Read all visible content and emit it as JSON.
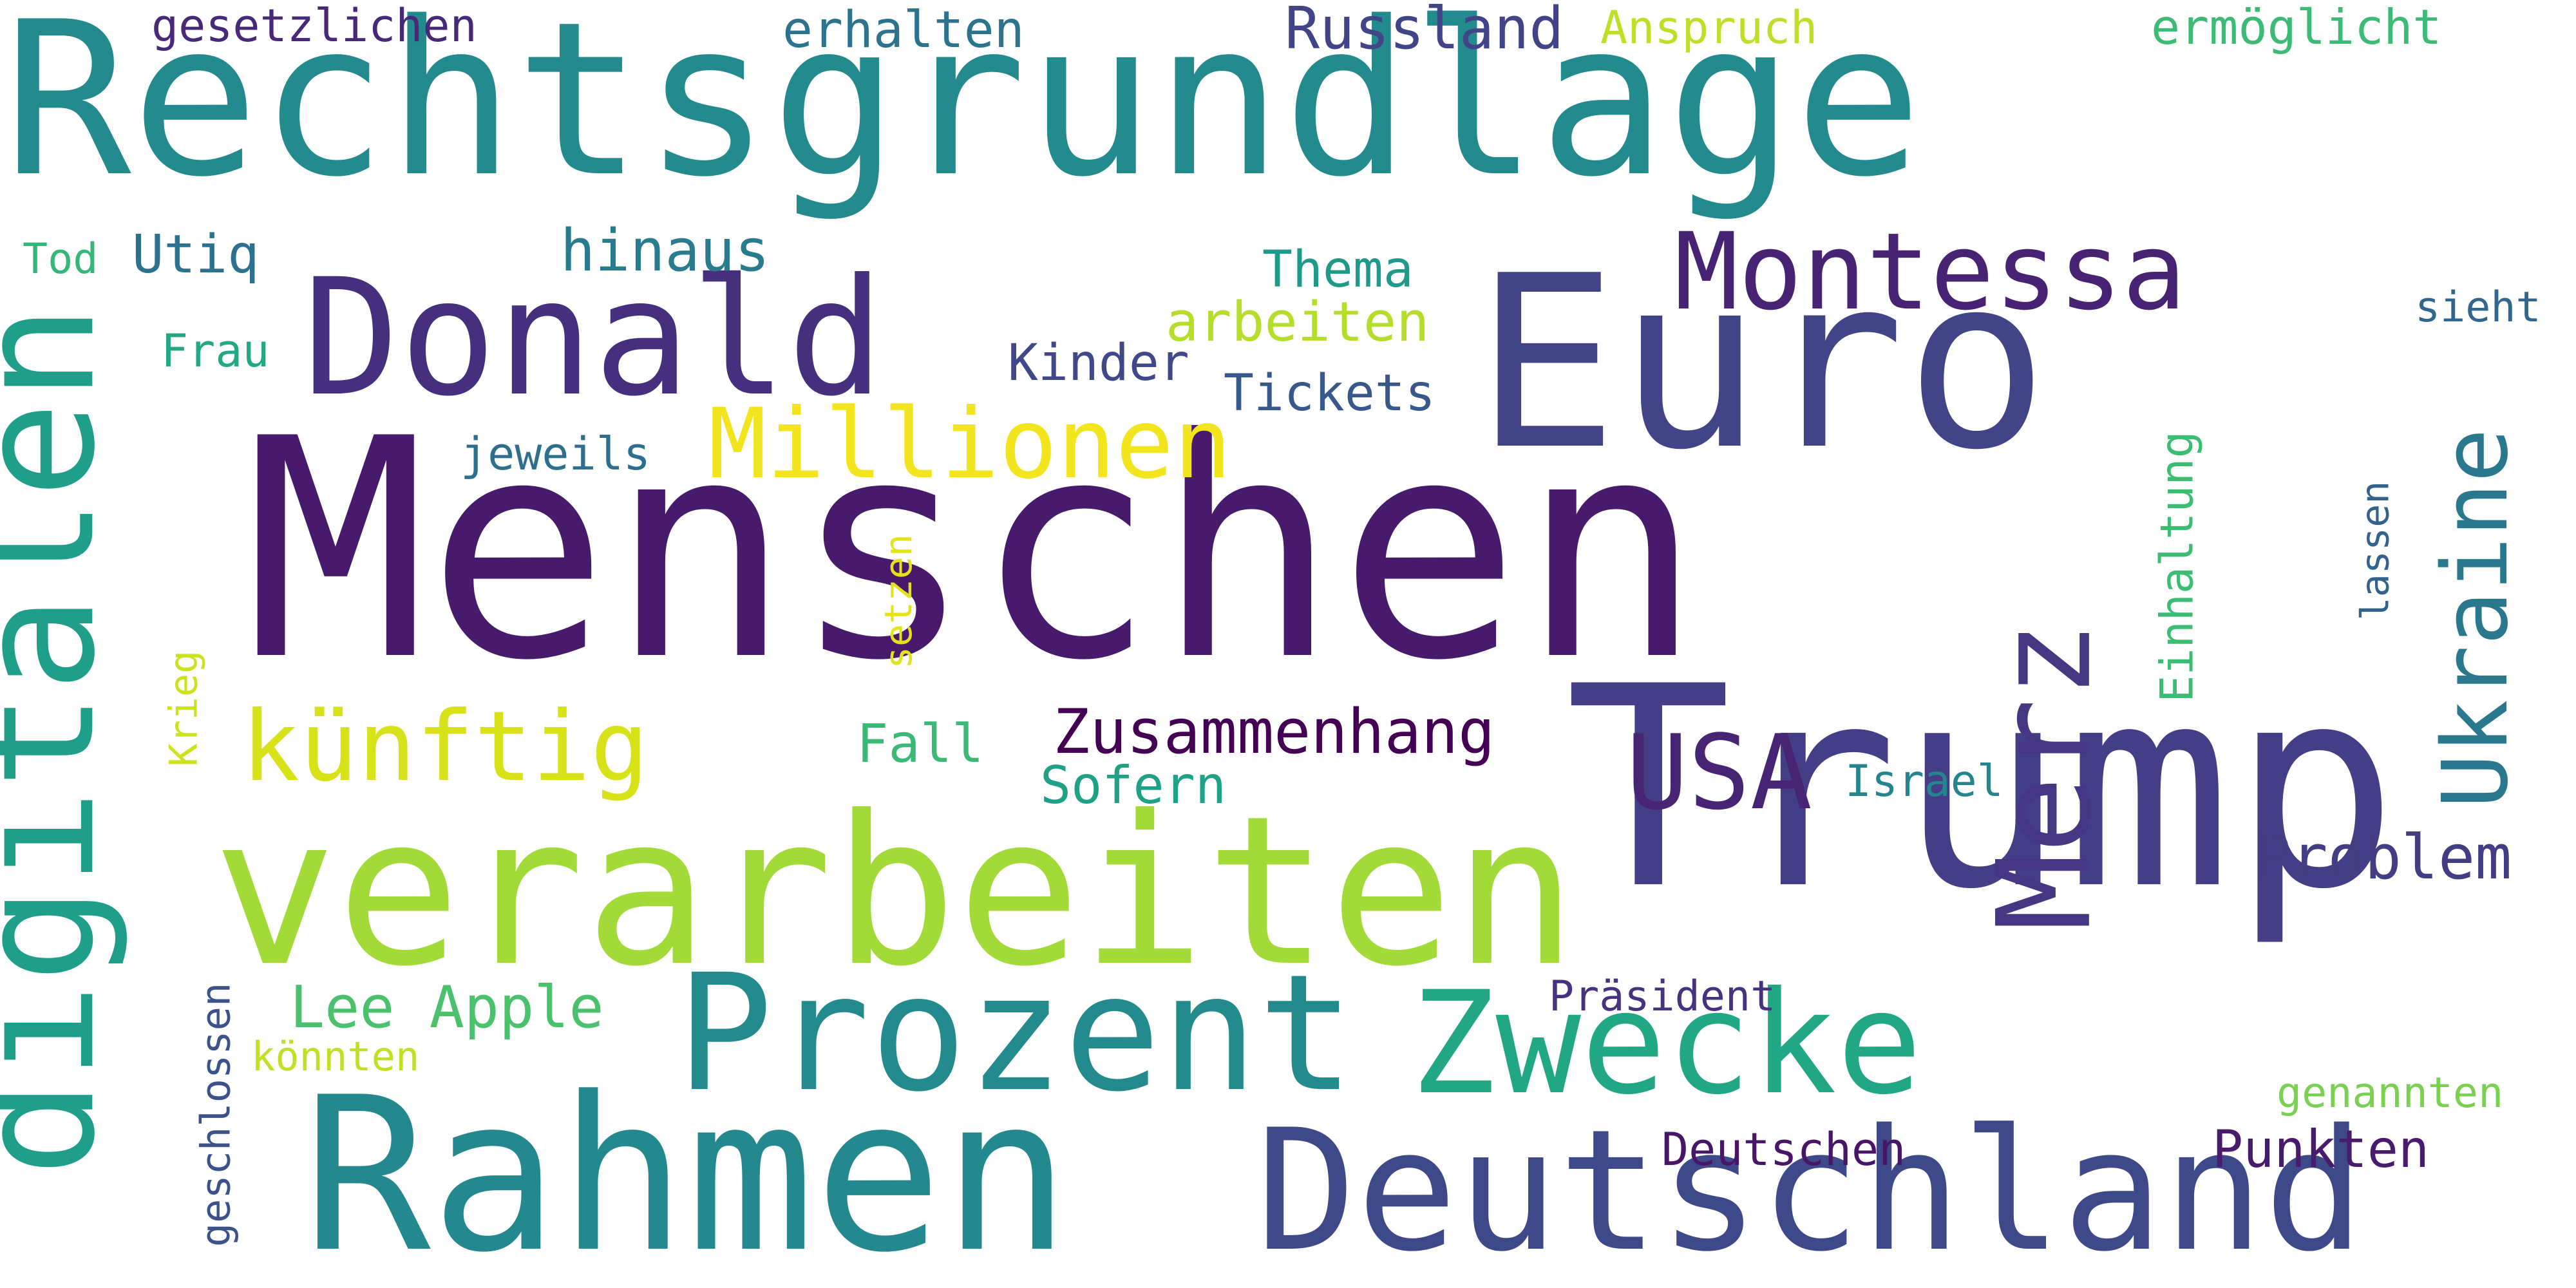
{
  "words": {
    "rechtsgrundlage": {
      "text": "Rechtsgrundlage",
      "color": "#238a8d"
    },
    "menschen": {
      "text": "Menschen",
      "color": "#481a6c"
    },
    "verarbeiten": {
      "text": "verarbeiten",
      "color": "#a2da37"
    },
    "rahmen": {
      "text": "Rahmen",
      "color": "#23898e"
    },
    "euro": {
      "text": "Euro",
      "color": "#414487"
    },
    "trump": {
      "text": "Trump",
      "color": "#433e85"
    },
    "digitalen": {
      "text": "digitalen",
      "color": "#1f9e89"
    },
    "donald": {
      "text": "Donald",
      "color": "#46307e"
    },
    "deutschland": {
      "text": "Deutschland",
      "color": "#3e4989"
    },
    "prozent": {
      "text": "Prozent",
      "color": "#238a8d"
    },
    "zwecke": {
      "text": "Zwecke",
      "color": "#22a785"
    },
    "montessa": {
      "text": "Montessa",
      "color": "#482374"
    },
    "merz": {
      "text": "Merz",
      "color": "#453781"
    },
    "millionen": {
      "text": "Millionen",
      "color": "#f2e51d"
    },
    "kuenftig": {
      "text": "künftig",
      "color": "#d8e219"
    },
    "usa": {
      "text": "USA",
      "color": "#482475"
    },
    "ukraine": {
      "text": "Ukraine",
      "color": "#2a788e"
    },
    "zusammenhang": {
      "text": "Zusammenhang",
      "color": "#440154"
    },
    "problem": {
      "text": "Problem",
      "color": "#433d84"
    },
    "lee_apple": {
      "text": "Lee Apple",
      "color": "#4ac16d"
    },
    "russland": {
      "text": "Russland",
      "color": "#414487"
    },
    "hinaus": {
      "text": "hinaus",
      "color": "#287c8e"
    },
    "thema": {
      "text": "Thema",
      "color": "#1f9a8a"
    },
    "arbeiten": {
      "text": "arbeiten",
      "color": "#b5de2b"
    },
    "kinder": {
      "text": "Kinder",
      "color": "#3f4889"
    },
    "tickets": {
      "text": "Tickets",
      "color": "#38588c"
    },
    "erhalten": {
      "text": "erhalten",
      "color": "#2c738e"
    },
    "gesetzlichen": {
      "text": "gesetzlichen",
      "color": "#482878"
    },
    "anspruch": {
      "text": "Anspruch",
      "color": "#bddf26"
    },
    "ermoeglicht": {
      "text": "ermöglicht",
      "color": "#3bbb75"
    },
    "utiq": {
      "text": "Utiq",
      "color": "#2c728e"
    },
    "tod": {
      "text": "Tod",
      "color": "#35b779"
    },
    "frau": {
      "text": "Frau",
      "color": "#22a884"
    },
    "jeweils": {
      "text": "jeweils",
      "color": "#2d708e"
    },
    "fall": {
      "text": "Fall",
      "color": "#3aba76"
    },
    "sofern": {
      "text": "Sofern",
      "color": "#1fa187"
    },
    "israel": {
      "text": "Israel",
      "color": "#25858e"
    },
    "praesident": {
      "text": "Präsident",
      "color": "#46327e"
    },
    "deutschen": {
      "text": "Deutschen",
      "color": "#481668"
    },
    "punkten": {
      "text": "Punkten",
      "color": "#481b6d"
    },
    "genannten": {
      "text": "genannten",
      "color": "#7ad151"
    },
    "koennten": {
      "text": "könnten",
      "color": "#c2df23"
    },
    "sieht": {
      "text": "sieht",
      "color": "#31668e"
    },
    "einhaltung": {
      "text": "Einhaltung",
      "color": "#3dbc74"
    },
    "lassen": {
      "text": "lassen",
      "color": "#33638d"
    },
    "setzen": {
      "text": "setzen",
      "color": "#e2e418"
    },
    "krieg": {
      "text": "Krieg",
      "color": "#cde11d"
    },
    "geschlossen": {
      "text": "geschlossen",
      "color": "#3b528b"
    }
  }
}
